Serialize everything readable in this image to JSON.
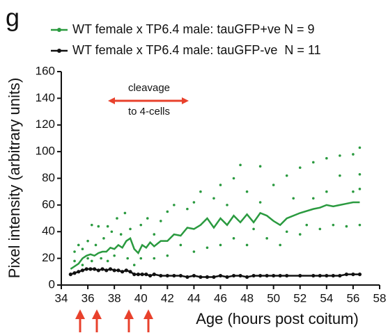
{
  "chart_data": {
    "type": "line",
    "panel_label": "g",
    "xlabel": "Age (hours post coitum)",
    "ylabel": "Pixel intensity (arbitrary units)",
    "annotation": [
      "cleavage",
      "to 4-cells"
    ],
    "xlim": [
      34,
      58
    ],
    "xticks": [
      34,
      36,
      38,
      40,
      42,
      44,
      46,
      48,
      50,
      52,
      54,
      56,
      58
    ],
    "ylim": [
      0,
      160
    ],
    "yticks": [
      0,
      20,
      40,
      60,
      80,
      100,
      120,
      140,
      160
    ],
    "x": [
      34.7,
      35,
      35.3,
      35.6,
      35.9,
      36.2,
      36.5,
      36.8,
      37.1,
      37.4,
      37.7,
      38,
      38.3,
      38.6,
      38.9,
      39.2,
      39.5,
      39.8,
      40.1,
      40.4,
      40.7,
      41,
      41.5,
      42,
      42.5,
      43,
      43.5,
      44,
      44.5,
      45,
      45.5,
      46,
      46.5,
      47,
      47.5,
      48,
      48.5,
      49,
      49.5,
      50,
      50.5,
      51,
      52,
      53,
      53.5,
      54,
      54.5,
      55,
      55.5,
      56,
      56.5
    ],
    "series": [
      {
        "name": "WT female x TP6.4 male: tauGFP+ve N = 9",
        "color": "#2a9a3f",
        "values": [
          12,
          14,
          16,
          20,
          22,
          23,
          22,
          24,
          25,
          25,
          28,
          27,
          30,
          28,
          33,
          35,
          27,
          24,
          30,
          28,
          32,
          29,
          33,
          33,
          38,
          37,
          43,
          42,
          45,
          50,
          43,
          50,
          45,
          52,
          47,
          53,
          47,
          54,
          52,
          48,
          45,
          50,
          54,
          57,
          58,
          60,
          59,
          60,
          61,
          62,
          62
        ]
      },
      {
        "name": "WT female x TP6.4 male: tauGFP-ve  N = 11",
        "color": "#111111",
        "values": [
          8,
          9,
          10,
          11,
          12,
          12,
          12,
          11,
          12,
          11,
          12,
          11,
          11,
          10,
          11,
          10,
          8,
          8,
          8,
          8,
          7,
          8,
          7,
          7,
          7,
          7,
          6,
          7,
          6,
          6,
          6,
          7,
          6,
          7,
          7,
          6,
          7,
          7,
          7,
          7,
          7,
          7,
          7,
          7,
          7,
          7,
          7,
          7,
          8,
          8,
          8
        ]
      }
    ],
    "scatter": {
      "color": "#2a9a3f",
      "x": [
        35,
        35,
        35.3,
        35.6,
        35.6,
        36,
        36,
        36.3,
        36.3,
        36.6,
        36.8,
        37,
        37.2,
        37.5,
        37.5,
        37.8,
        38,
        38.2,
        38.5,
        38.8,
        39,
        39.2,
        39.5,
        40,
        40,
        40.5,
        41,
        41,
        41.5,
        42,
        42,
        42.5,
        43,
        43.5,
        44,
        44,
        44.5,
        45,
        45.5,
        46,
        46,
        46.5,
        47,
        47,
        47.5,
        48,
        48,
        48.5,
        49,
        49,
        49.5,
        50,
        50.5,
        51,
        51,
        51.5,
        52,
        52,
        52.5,
        53,
        53,
        53.5,
        54,
        54,
        54.5,
        55,
        55,
        55.5,
        56,
        56,
        56.5,
        56.5,
        56.5,
        56.5
      ],
      "values": [
        25,
        18,
        30,
        27,
        15,
        33,
        20,
        45,
        18,
        30,
        44,
        20,
        35,
        44,
        18,
        40,
        22,
        50,
        38,
        54,
        20,
        42,
        15,
        45,
        20,
        50,
        38,
        20,
        48,
        55,
        22,
        60,
        30,
        57,
        62,
        25,
        70,
        28,
        65,
        75,
        30,
        60,
        80,
        35,
        90,
        30,
        70,
        42,
        89,
        62,
        35,
        75,
        30,
        82,
        40,
        65,
        88,
        38,
        45,
        92,
        65,
        42,
        95,
        70,
        45,
        97,
        82,
        44,
        98,
        70,
        103,
        83,
        45,
        72
      ]
    }
  }
}
